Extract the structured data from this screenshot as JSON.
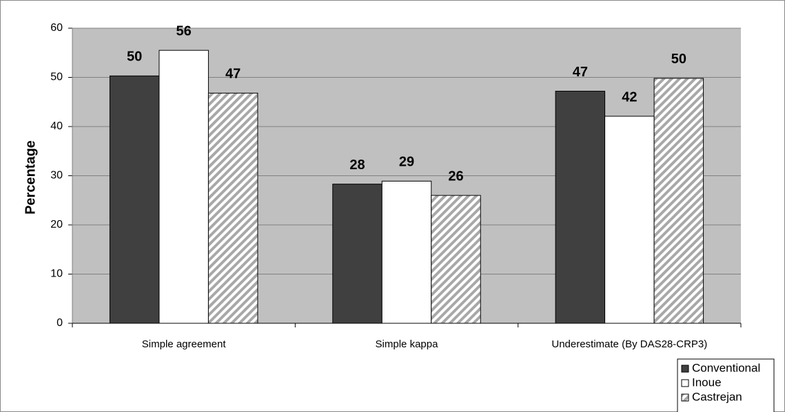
{
  "chart_data": {
    "type": "bar",
    "y_label": "Percentage",
    "categories": [
      "Simple agreement",
      "Simple kappa",
      "Underestimate (By DAS28-CRP3)"
    ],
    "series": [
      {
        "name": "Conventional",
        "color": "#404040",
        "values": [
          50.3,
          28.3,
          47.2
        ],
        "value_labels": [
          "50",
          "28",
          "47"
        ]
      },
      {
        "name": "Inoue",
        "color": "#ffffff",
        "values": [
          55.5,
          28.9,
          42.1
        ],
        "value_labels": [
          "56",
          "29",
          "42"
        ]
      },
      {
        "name": "Castrejan",
        "color": "#a8a8a8",
        "pattern": "diagonal",
        "values": [
          46.8,
          26,
          49.8
        ],
        "value_labels": [
          "47",
          "26",
          "50"
        ]
      }
    ],
    "ylim": [
      0,
      60
    ],
    "yticks": [
      0,
      10,
      20,
      30,
      40,
      50,
      60
    ],
    "grid": true,
    "plot_background": "#c0c0c0",
    "legend": "bottom-right"
  }
}
